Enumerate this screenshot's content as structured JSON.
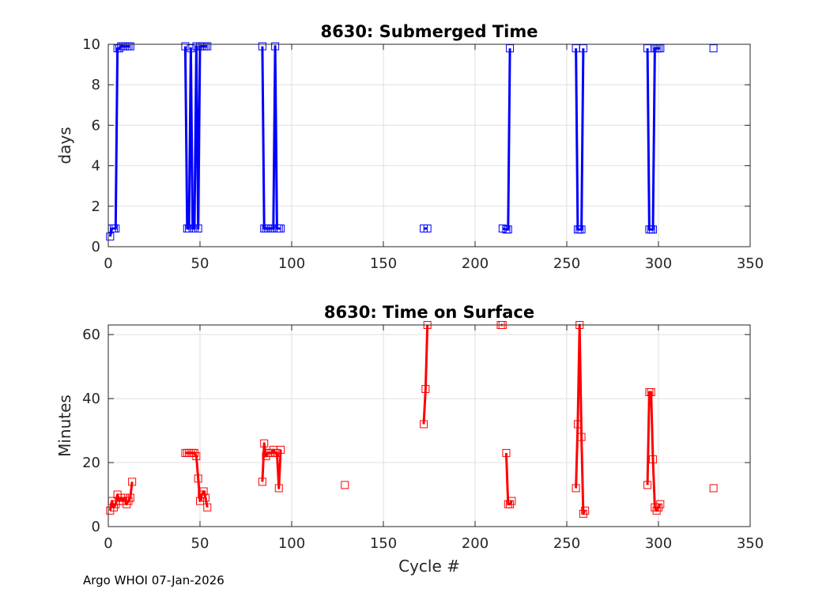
{
  "footer": "Argo WHOI 07-Jan-2026",
  "chart_data": [
    {
      "type": "line",
      "title": "8630: Submerged Time",
      "xlabel": "",
      "ylabel": "days",
      "xlim": [
        0,
        350
      ],
      "ylim": [
        0,
        10
      ],
      "xticks": [
        0,
        50,
        100,
        150,
        200,
        250,
        300,
        350
      ],
      "yticks": [
        0,
        2,
        4,
        6,
        8,
        10
      ],
      "grid": true,
      "color": "#0000ff",
      "marker": "square",
      "series": [
        {
          "name": "submerged_time",
          "x": [
            1,
            2,
            3,
            4,
            5,
            6,
            7,
            8,
            9,
            10,
            11,
            12
          ],
          "y": [
            0.5,
            0.9,
            0.9,
            0.9,
            9.8,
            9.8,
            9.9,
            9.9,
            9.9,
            9.9,
            9.9,
            9.9
          ]
        },
        {
          "name": "submerged_time",
          "x": [
            42,
            43,
            44,
            45,
            46,
            47,
            48,
            49,
            50,
            51,
            52,
            53,
            54
          ],
          "y": [
            9.9,
            0.9,
            0.9,
            9.8,
            0.9,
            0.9,
            9.9,
            0.9,
            9.9,
            9.9,
            9.9,
            9.9,
            9.9
          ]
        },
        {
          "name": "submerged_time",
          "x": [
            84,
            85,
            86,
            87,
            88,
            89,
            90,
            91,
            92,
            93,
            94
          ],
          "y": [
            9.9,
            0.9,
            0.9,
            0.9,
            0.9,
            0.9,
            0.9,
            9.9,
            0.9,
            0.9,
            0.9
          ]
        },
        {
          "name": "submerged_time",
          "x": [
            172,
            174
          ],
          "y": [
            0.9,
            0.9
          ]
        },
        {
          "name": "submerged_time",
          "x": [
            215,
            217,
            218,
            219
          ],
          "y": [
            0.9,
            0.85,
            0.85,
            9.8
          ]
        },
        {
          "name": "submerged_time",
          "x": [
            255,
            256,
            257,
            258,
            259
          ],
          "y": [
            9.8,
            0.85,
            0.85,
            0.85,
            9.8
          ]
        },
        {
          "name": "submerged_time",
          "x": [
            294,
            295,
            296,
            297,
            298,
            299,
            300,
            301
          ],
          "y": [
            9.8,
            0.85,
            0.85,
            0.85,
            9.8,
            9.8,
            9.8,
            9.8
          ]
        },
        {
          "name": "submerged_time",
          "x": [
            330
          ],
          "y": [
            9.8
          ]
        }
      ]
    },
    {
      "type": "line",
      "title": "8630: Time on Surface",
      "xlabel": "Cycle #",
      "ylabel": "Minutes",
      "xlim": [
        0,
        350
      ],
      "ylim": [
        0,
        63
      ],
      "xticks": [
        0,
        50,
        100,
        150,
        200,
        250,
        300,
        350
      ],
      "yticks": [
        0,
        20,
        40,
        60
      ],
      "grid": true,
      "color": "#ff0000",
      "marker": "square",
      "series": [
        {
          "name": "surface_time",
          "x": [
            1,
            2,
            3,
            4,
            5,
            6,
            7,
            8,
            9,
            10,
            11,
            12,
            13
          ],
          "y": [
            5,
            8,
            6,
            7,
            10,
            8,
            9,
            8,
            9,
            7,
            8,
            9,
            14
          ]
        },
        {
          "name": "surface_time",
          "x": [
            42,
            43,
            44,
            45,
            46,
            47,
            48,
            49,
            50,
            51,
            52,
            53,
            54
          ],
          "y": [
            23,
            23,
            23,
            23,
            23,
            23,
            22,
            15,
            8,
            10,
            11,
            9,
            6
          ]
        },
        {
          "name": "surface_time",
          "x": [
            84,
            85,
            86,
            87,
            88,
            89,
            90,
            91,
            92,
            93,
            94
          ],
          "y": [
            14,
            26,
            22,
            23,
            23,
            23,
            24,
            23,
            23,
            12,
            24
          ]
        },
        {
          "name": "surface_time",
          "x": [
            129
          ],
          "y": [
            13
          ]
        },
        {
          "name": "surface_time",
          "x": [
            172,
            173,
            174
          ],
          "y": [
            32,
            43,
            63
          ]
        },
        {
          "name": "surface_time",
          "x": [
            214,
            215
          ],
          "y": [
            63,
            63
          ]
        },
        {
          "name": "surface_time",
          "x": [
            217,
            218,
            219,
            220
          ],
          "y": [
            23,
            7,
            7,
            8
          ]
        },
        {
          "name": "surface_time",
          "x": [
            255,
            256,
            257,
            258,
            259,
            260
          ],
          "y": [
            12,
            32,
            63,
            28,
            4,
            5
          ]
        },
        {
          "name": "surface_time",
          "x": [
            294,
            295,
            296,
            297,
            298,
            299,
            300,
            301
          ],
          "y": [
            13,
            42,
            42,
            21,
            6,
            5,
            6,
            7
          ]
        },
        {
          "name": "surface_time",
          "x": [
            330
          ],
          "y": [
            12
          ]
        }
      ]
    }
  ]
}
